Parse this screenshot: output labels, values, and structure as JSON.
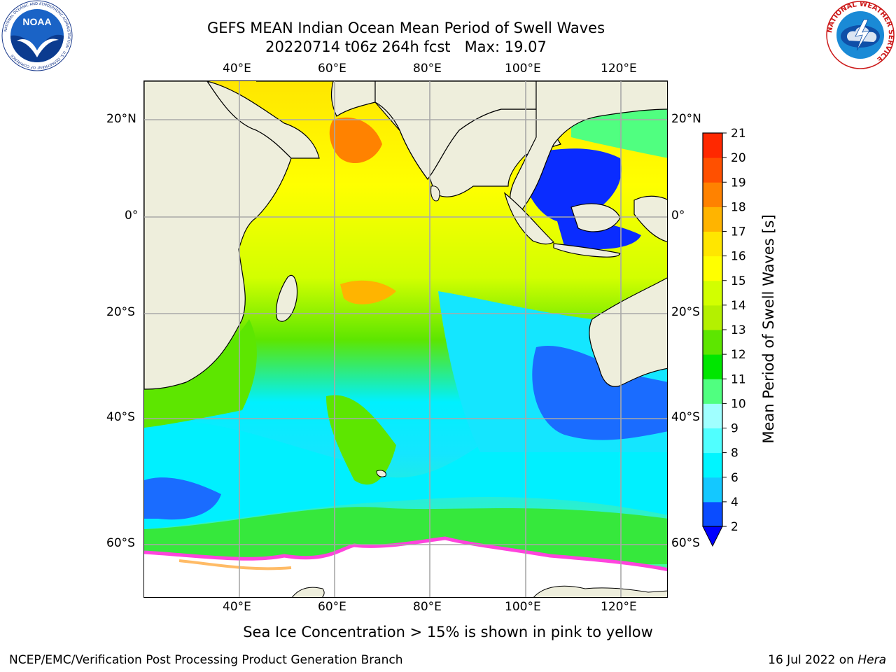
{
  "header": {
    "title": "GEFS MEAN Indian Ocean Mean Period of Swell Waves",
    "subtitle": "20220714 t06z 264h fcst   Max: 19.07"
  },
  "logos": {
    "left": {
      "icon": "noaa-logo-icon",
      "text": "NOAA",
      "ring": "NATIONAL OCEANIC AND ATMOSPHERIC ADMINISTRATION · U.S. DEPARTMENT OF COMMERCE"
    },
    "right": {
      "icon": "nws-logo-icon",
      "ring": "NATIONAL WEATHER SERVICE"
    }
  },
  "map": {
    "lon_ticks": [
      "40°E",
      "60°E",
      "80°E",
      "100°E",
      "120°E"
    ],
    "lat_ticks": [
      "20°N",
      "0°",
      "20°S",
      "40°S",
      "60°S"
    ],
    "colors": {
      "land": "#eeeedc",
      "ice": "#ff44dd",
      "ice_edge": "#ffbb66"
    }
  },
  "colorbar": {
    "label": "Mean Period of Swell Waves [s]",
    "ticks": [
      "2",
      "4",
      "6",
      "8",
      "9",
      "10",
      "11",
      "12",
      "13",
      "14",
      "15",
      "16",
      "17",
      "18",
      "19",
      "20",
      "21"
    ],
    "colors": [
      "#0a4cff",
      "#14c8ff",
      "#00f5ff",
      "#50ffff",
      "#a0ffff",
      "#50ff80",
      "#00e600",
      "#5de600",
      "#b4f000",
      "#d2ff00",
      "#ffff00",
      "#ffe600",
      "#ffb400",
      "#ff8200",
      "#ff5000",
      "#ff2800",
      "#ff0000"
    ]
  },
  "note": "Sea Ice Concentration > 15% is shown in pink to yellow",
  "footer": {
    "left": "NCEP/EMC/Verification Post Processing Product Generation Branch",
    "date": "16 Jul 2022 on",
    "host": "Hera"
  }
}
